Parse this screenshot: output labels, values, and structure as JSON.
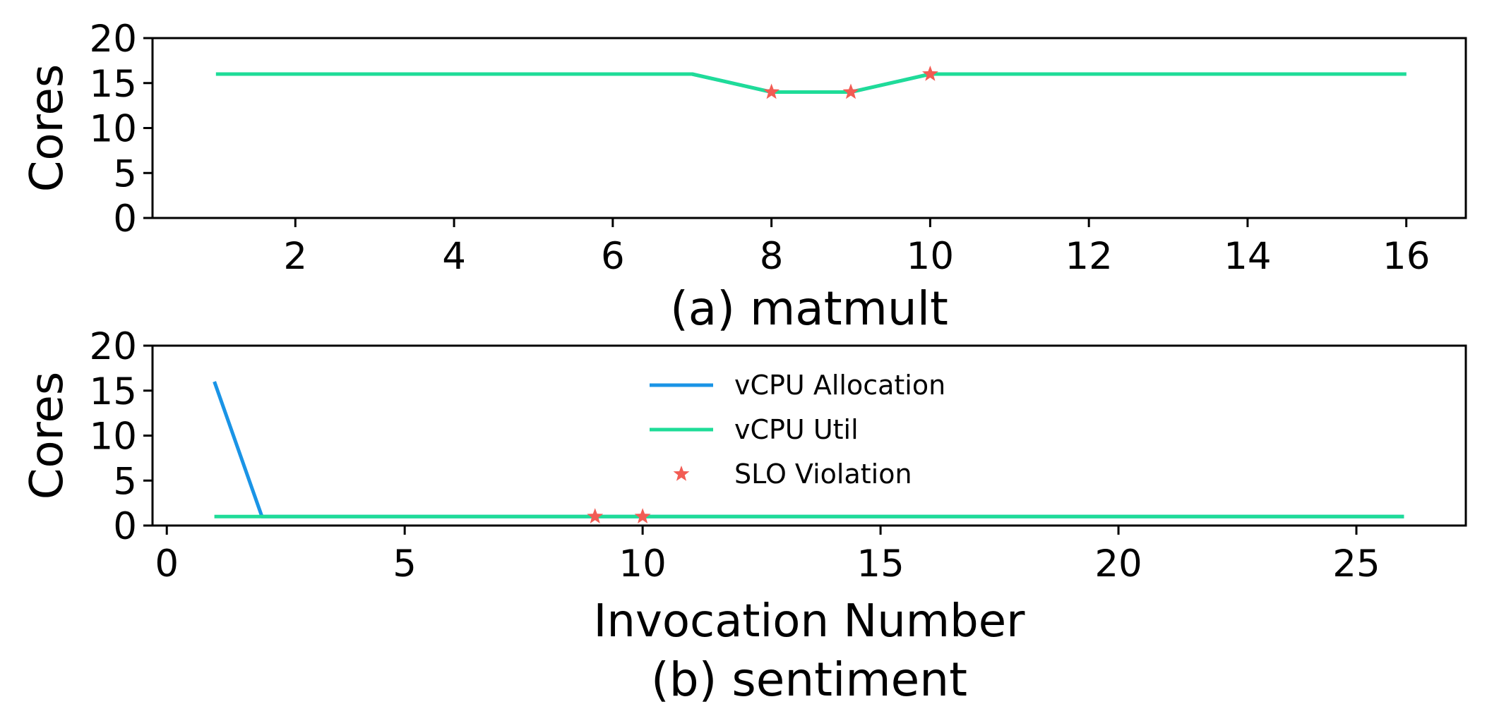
{
  "chart_data": [
    {
      "type": "line",
      "caption": "(a) matmult",
      "ylabel": "Cores",
      "xlabel": "",
      "xlim": [
        0.2,
        16.75
      ],
      "ylim": [
        0,
        20
      ],
      "xticks": [
        2,
        4,
        6,
        8,
        10,
        12,
        14,
        16
      ],
      "yticks": [
        0,
        5,
        10,
        15,
        20
      ],
      "series": [
        {
          "name": "vCPU Allocation",
          "color": "#1a94e6",
          "x": [
            1,
            2,
            3,
            4,
            5,
            6,
            7,
            8,
            9,
            10,
            11,
            12,
            13,
            14,
            15,
            16
          ],
          "y": [
            16,
            16,
            16,
            16,
            16,
            16,
            16,
            14,
            14,
            16,
            16,
            16,
            16,
            16,
            16,
            16
          ]
        },
        {
          "name": "vCPU Util",
          "color": "#1fdc98",
          "x": [
            1,
            2,
            3,
            4,
            5,
            6,
            7,
            8,
            9,
            10,
            11,
            12,
            13,
            14,
            15,
            16
          ],
          "y": [
            16,
            16,
            16,
            16,
            16,
            16,
            16,
            14,
            14,
            16,
            16,
            16,
            16,
            16,
            16,
            16
          ]
        }
      ],
      "markers": {
        "name": "SLO Violation",
        "color": "#f25c54",
        "x": [
          8,
          9,
          10
        ],
        "y": [
          14,
          14,
          16
        ]
      }
    },
    {
      "type": "line",
      "caption": "(b) sentiment",
      "ylabel": "Cores",
      "xlabel": "Invocation Number",
      "xlim": [
        -0.3,
        27.3
      ],
      "ylim": [
        0,
        20
      ],
      "xticks": [
        0,
        5,
        10,
        15,
        20,
        25
      ],
      "yticks": [
        0,
        5,
        10,
        15,
        20
      ],
      "series": [
        {
          "name": "vCPU Allocation",
          "color": "#1a94e6",
          "x": [
            1,
            2,
            26
          ],
          "y": [
            16,
            1,
            1
          ]
        },
        {
          "name": "vCPU Util",
          "color": "#1fdc98",
          "x": [
            1,
            26
          ],
          "y": [
            1,
            1
          ]
        }
      ],
      "markers": {
        "name": "SLO Violation",
        "color": "#f25c54",
        "x": [
          9,
          10
        ],
        "y": [
          1,
          1
        ]
      },
      "legend": {
        "position": "upper-center",
        "entries": [
          "vCPU Allocation",
          "vCPU Util",
          "SLO Violation"
        ]
      }
    }
  ]
}
